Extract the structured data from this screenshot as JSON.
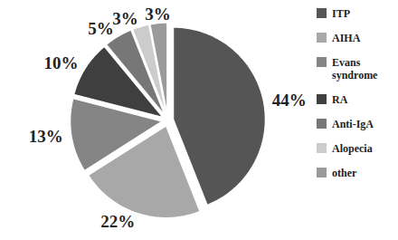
{
  "chart_data": {
    "type": "pie",
    "categories": [
      "ITP",
      "AIHA",
      "Evans syndrome",
      "RA",
      "Anti-IgA",
      "Alopecia",
      "other"
    ],
    "values": [
      44,
      22,
      13,
      10,
      5,
      3,
      3
    ],
    "value_labels": [
      "44%",
      "22%",
      "13%",
      "10%",
      "5%",
      "3%",
      "3%"
    ],
    "colors": [
      "#555555",
      "#a8a8a8",
      "#858585",
      "#3f3f3f",
      "#777777",
      "#cccccc",
      "#9a9a9a"
    ],
    "data_labels": true,
    "legend": "right"
  }
}
